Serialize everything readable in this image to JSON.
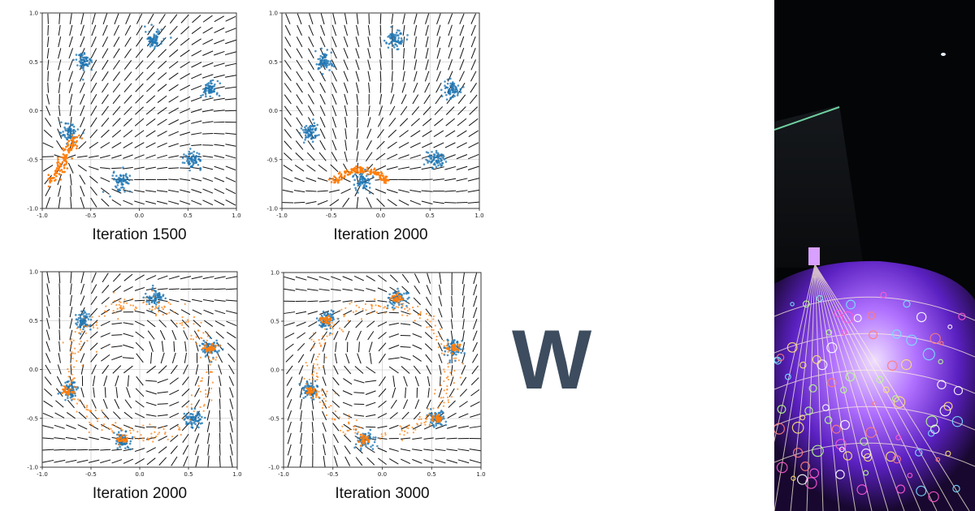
{
  "colors": {
    "real_points": "#1f77b4",
    "generated_points": "#ff7f0e",
    "arrows": "#111111",
    "grid": "#d0d0d0",
    "overlay_letter": "#3d4c5e"
  },
  "overlay_letter": "W",
  "photo": {
    "icon": "illuminated-dome-photo"
  },
  "chart_data": [
    {
      "type": "scatter",
      "title": "Iteration 1500",
      "xlim": [
        -1.0,
        1.0
      ],
      "ylim": [
        -1.0,
        1.0
      ],
      "xticks": [
        "-1.0",
        "-0.5",
        "0.0",
        "0.5",
        "1.0"
      ],
      "yticks": [
        "1.0",
        "0.5",
        "0.0",
        "-0.5",
        "-1.0"
      ],
      "grid": true,
      "series": [
        {
          "name": "real",
          "centers": [
            [
              0.15,
              0.73
            ],
            [
              0.72,
              0.22
            ],
            [
              0.55,
              -0.5
            ],
            [
              -0.18,
              -0.72
            ],
            [
              -0.72,
              -0.22
            ],
            [
              -0.57,
              0.5
            ]
          ]
        },
        {
          "name": "generated",
          "shape": "streak",
          "from": [
            -0.9,
            -0.72
          ],
          "to": [
            -0.65,
            -0.33
          ]
        }
      ],
      "vector_field": "gradient arrows on 17x17 grid"
    },
    {
      "type": "scatter",
      "title": "Iteration 2000",
      "xlim": [
        -1.0,
        1.0
      ],
      "ylim": [
        -1.0,
        1.0
      ],
      "xticks": [
        "-1.0",
        "-0.5",
        "0.0",
        "0.5",
        "1.0"
      ],
      "yticks": [
        "1.0",
        "0.5",
        "0.0",
        "-0.5",
        "-1.0"
      ],
      "grid": true,
      "series": [
        {
          "name": "real",
          "centers": [
            [
              0.15,
              0.73
            ],
            [
              0.72,
              0.22
            ],
            [
              0.55,
              -0.5
            ],
            [
              -0.18,
              -0.72
            ],
            [
              -0.72,
              -0.22
            ],
            [
              -0.57,
              0.5
            ]
          ]
        },
        {
          "name": "generated",
          "shape": "arc",
          "center": [
            -0.2,
            -0.78
          ],
          "radius": 0.22
        }
      ],
      "vector_field": "gradient arrows on 17x17 grid"
    },
    {
      "type": "scatter",
      "title": "Iteration 2000",
      "xlim": [
        -1.0,
        1.0
      ],
      "ylim": [
        -1.0,
        1.0
      ],
      "xticks": [
        "-1.0",
        "-0.5",
        "0.0",
        "0.5",
        "1.0"
      ],
      "yticks": [
        "1.0",
        "0.5",
        "0.0",
        "-0.5",
        "-1.0"
      ],
      "grid": true,
      "series": [
        {
          "name": "real",
          "centers": [
            [
              0.15,
              0.73
            ],
            [
              0.72,
              0.22
            ],
            [
              0.55,
              -0.5
            ],
            [
              -0.18,
              -0.72
            ],
            [
              -0.72,
              -0.22
            ],
            [
              -0.57,
              0.5
            ]
          ]
        },
        {
          "name": "generated",
          "shape": "ring",
          "radius": 0.68
        }
      ],
      "vector_field": "gradient arrows on 17x17 grid"
    },
    {
      "type": "scatter",
      "title": "Iteration 3000",
      "xlim": [
        -1.0,
        1.0
      ],
      "ylim": [
        -1.0,
        1.0
      ],
      "xticks": [
        "-1.0",
        "-0.5",
        "0.0",
        "0.5",
        "1.0"
      ],
      "yticks": [
        "1.0",
        "0.5",
        "0.0",
        "-0.5",
        "-1.0"
      ],
      "grid": true,
      "series": [
        {
          "name": "real",
          "centers": [
            [
              0.15,
              0.73
            ],
            [
              0.72,
              0.22
            ],
            [
              0.55,
              -0.5
            ],
            [
              -0.18,
              -0.72
            ],
            [
              -0.72,
              -0.22
            ],
            [
              -0.57,
              0.5
            ]
          ]
        },
        {
          "name": "generated",
          "shape": "ring",
          "radius": 0.66
        }
      ],
      "vector_field": "gradient arrows on 17x17 grid"
    }
  ]
}
